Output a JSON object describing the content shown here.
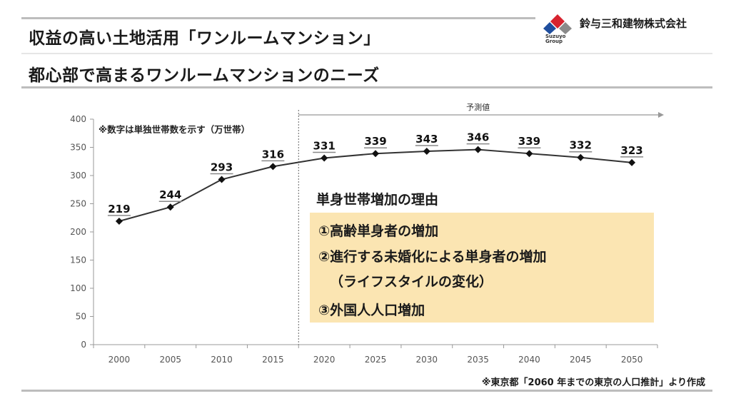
{
  "header": {
    "title_line1": "収益の高い土地活用「ワンルームマンション」",
    "title_line2": "都心部で高まるワンルームマンションのニーズ"
  },
  "brand": {
    "company": "鈴与三和建物株式会社",
    "logo_text_1": "Suzuyo",
    "logo_text_2": "Group",
    "colors": {
      "red": "#d7232f",
      "blue": "#1f4e9e",
      "gray": "#8a8a8a"
    }
  },
  "chart_data": {
    "type": "line",
    "note": "※数字は単独世帯数を示す（万世帯）",
    "forecast_label": "予測値",
    "categories": [
      "2000",
      "2005",
      "2010",
      "2015",
      "2020",
      "2025",
      "2030",
      "2035",
      "2040",
      "2045",
      "2050"
    ],
    "values": [
      219,
      244,
      293,
      316,
      331,
      339,
      343,
      346,
      339,
      332,
      323
    ],
    "ylim": [
      0,
      400
    ],
    "yticks": [
      0,
      50,
      100,
      150,
      200,
      250,
      300,
      350,
      400
    ],
    "forecast_start_category": "2020",
    "line_color": "#333333",
    "grid": false
  },
  "reasons": {
    "title": "単身世帯増加の理由",
    "item1": "①高齢単身者の増加",
    "item2": "②進行する未婚化による単身者の増加",
    "item2_sub": "（ライフスタイルの変化）",
    "item3": "③外国人人口増加",
    "box_color": "#fbe5b2"
  },
  "source": "※東京都「2060 年までの東京の人口推計」より作成"
}
